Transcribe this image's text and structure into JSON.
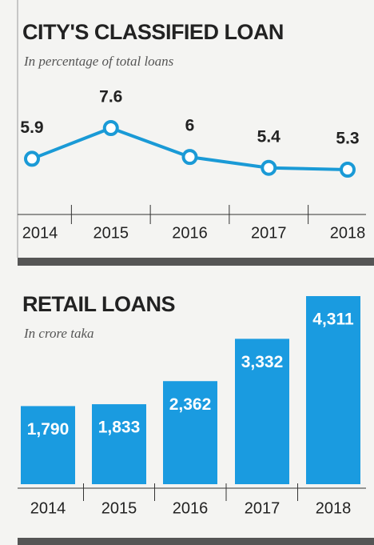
{
  "chart_data": [
    {
      "type": "line",
      "title": "CITY'S CLASSIFIED LOAN",
      "subtitle": "In percentage of total loans",
      "categories": [
        "2014",
        "2015",
        "2016",
        "2017",
        "2018"
      ],
      "values": [
        5.9,
        7.6,
        6,
        5.4,
        5.3
      ],
      "color": "#1a9ad6"
    },
    {
      "type": "bar",
      "title": "RETAIL LOANS",
      "subtitle": "In crore taka",
      "categories": [
        "2014",
        "2015",
        "2016",
        "2017",
        "2018"
      ],
      "values": [
        1790,
        1833,
        2362,
        3332,
        4311
      ],
      "value_labels": [
        "1,790",
        "1,833",
        "2,362",
        "3,332",
        "4,311"
      ],
      "color": "#1a9be0"
    }
  ]
}
